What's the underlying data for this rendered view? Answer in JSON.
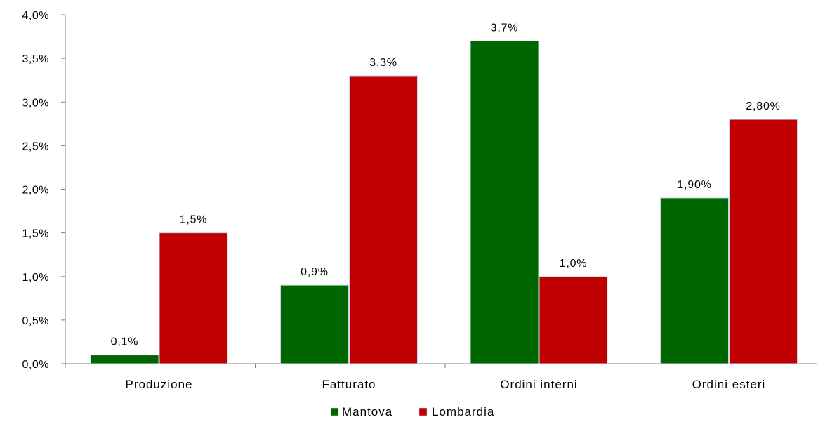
{
  "chart_data": {
    "type": "bar",
    "title": "",
    "xlabel": "",
    "ylabel": "",
    "categories": [
      "Produzione",
      "Fatturato",
      "Ordini interni",
      "Ordini esteri"
    ],
    "series": [
      {
        "name": "Mantova",
        "color": "#006600",
        "values": [
          0.1,
          0.9,
          3.7,
          1.9
        ],
        "labels": [
          "0,1%",
          "0,9%",
          "3,7%",
          "1,90%"
        ]
      },
      {
        "name": "Lombardia",
        "color": "#C00000",
        "values": [
          1.5,
          3.3,
          1.0,
          2.8
        ],
        "labels": [
          "1,5%",
          "3,3%",
          "1,0%",
          "2,80%"
        ]
      }
    ],
    "ylim": [
      0,
      4.0
    ],
    "yticks": [
      0,
      0.5,
      1.0,
      1.5,
      2.0,
      2.5,
      3.0,
      3.5,
      4.0
    ],
    "ytick_labels": [
      "0,0%",
      "0,5%",
      "1,0%",
      "1,5%",
      "2,0%",
      "2,5%",
      "3,0%",
      "3,5%",
      "4,0%"
    ],
    "grid": false,
    "legend_position": "bottom-center"
  }
}
